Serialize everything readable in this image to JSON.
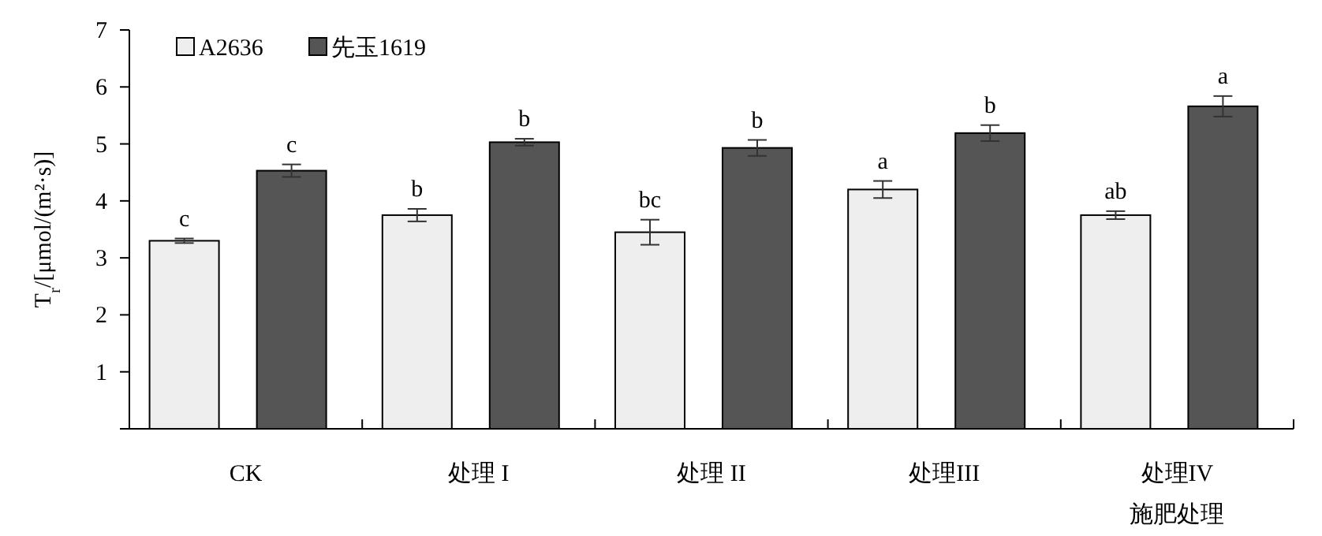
{
  "chart_data": {
    "type": "bar",
    "ylabel": "T$_{r}$/[μmol/(m²·s)]",
    "xlabel": "施肥处理",
    "categories": [
      "CK",
      "处理 I",
      "处理 II",
      "处理III",
      "处理IV"
    ],
    "series": [
      {
        "name": "A2636",
        "color": "#eeeeee",
        "values": [
          3.3,
          3.75,
          3.45,
          4.2,
          3.75
        ],
        "errors": [
          0.04,
          0.11,
          0.22,
          0.15,
          0.07
        ],
        "value_labels": [
          "c",
          "b",
          "bc",
          "a",
          "ab"
        ]
      },
      {
        "name": "先玉1619",
        "color": "#555555",
        "values": [
          4.53,
          5.03,
          4.93,
          5.19,
          5.66
        ],
        "errors": [
          0.11,
          0.06,
          0.14,
          0.14,
          0.18
        ],
        "value_labels": [
          "c",
          "b",
          "b",
          "b",
          "a"
        ]
      }
    ],
    "ylim": [
      0,
      7
    ],
    "yticks": [
      {
        "value": 0,
        "label": null
      },
      1,
      2,
      3,
      4,
      5,
      6,
      7
    ],
    "grid": false,
    "legend": "top left"
  }
}
